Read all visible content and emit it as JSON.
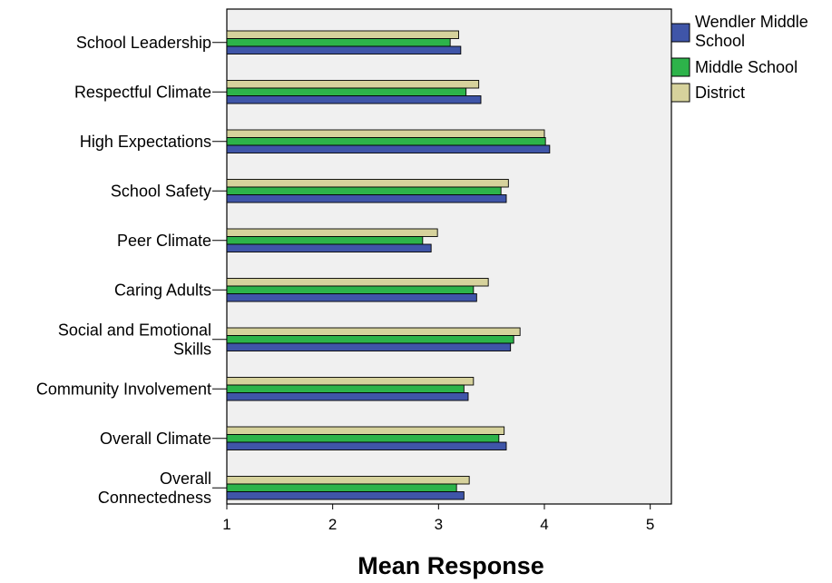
{
  "chart_data": {
    "type": "bar",
    "orientation": "horizontal",
    "categories": [
      "School Leadership",
      "Respectful Climate",
      "High Expectations",
      "School Safety",
      "Peer Climate",
      "Caring Adults",
      "Social and Emotional Skills",
      "Community Involvement",
      "Overall Climate",
      "Overall Connectedness"
    ],
    "category_lines": [
      [
        "School Leadership"
      ],
      [
        "Respectful Climate"
      ],
      [
        "High Expectations"
      ],
      [
        "School Safety"
      ],
      [
        "Peer Climate"
      ],
      [
        "Caring Adults"
      ],
      [
        "Social and Emotional",
        "Skills"
      ],
      [
        "Community Involvement"
      ],
      [
        "Overall Climate"
      ],
      [
        "Overall",
        "Connectedness"
      ]
    ],
    "series": [
      {
        "name": "Wendler Middle School",
        "legend_lines": [
          "Wendler Middle",
          "School"
        ],
        "color": "#3f55a8",
        "values": [
          3.21,
          3.4,
          4.05,
          3.64,
          2.93,
          3.36,
          3.68,
          3.28,
          3.64,
          3.24
        ]
      },
      {
        "name": "Middle School",
        "legend_lines": [
          "Middle School"
        ],
        "color": "#2db34a",
        "values": [
          3.11,
          3.26,
          4.01,
          3.59,
          2.85,
          3.33,
          3.71,
          3.24,
          3.57,
          3.17
        ]
      },
      {
        "name": "District",
        "legend_lines": [
          "District"
        ],
        "color": "#d6d29c",
        "values": [
          3.19,
          3.38,
          4.0,
          3.66,
          2.99,
          3.47,
          3.77,
          3.33,
          3.62,
          3.29
        ]
      }
    ],
    "xlabel": "Mean Response",
    "ylabel": "",
    "title": "",
    "xlim": [
      1,
      5.2
    ],
    "xticks": [
      "1",
      "2",
      "3",
      "4",
      "5"
    ],
    "tick_values": [
      1,
      2,
      3,
      4,
      5
    ],
    "plot_background": "#f0f0f0",
    "grid": false,
    "legend_position": "top-right"
  }
}
